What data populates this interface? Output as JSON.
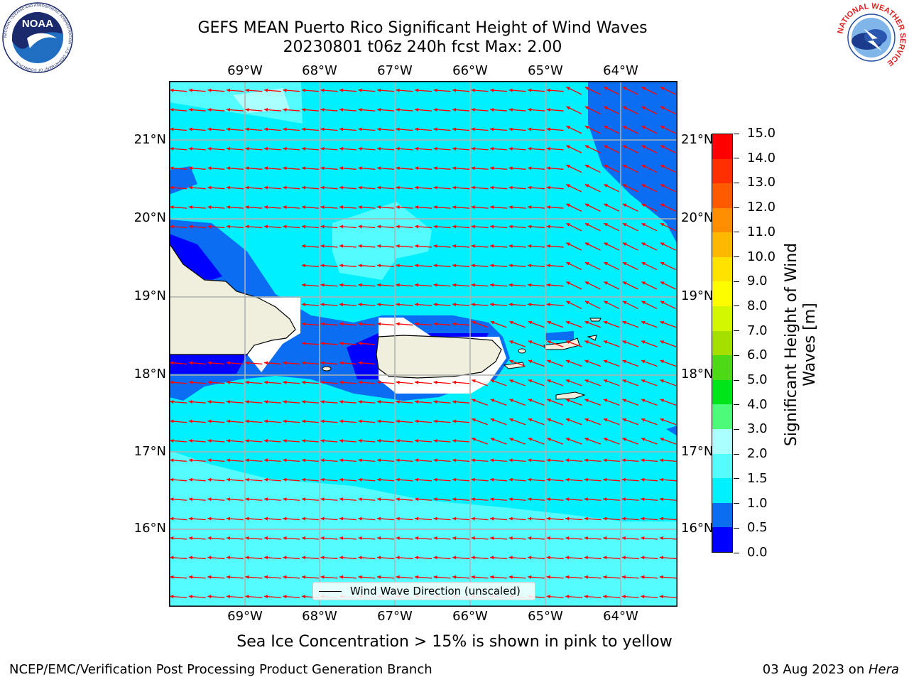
{
  "header": {
    "title_line1": "GEFS MEAN Puerto Rico Significant Height of Wind Waves",
    "title_line2": "20230801 t06z 240h fcst   Max: 2.00"
  },
  "logos": {
    "left": {
      "icon": "noaa-logo",
      "text": "NOAA",
      "ring_text": "NATIONAL OCEANIC AND ATMOSPHERIC ADMINISTRATION · U.S. DEPARTMENT OF COMMERCE"
    },
    "right": {
      "icon": "nws-logo",
      "ring_text": "NATIONAL WEATHER SERVICE"
    }
  },
  "map": {
    "lon_labels": [
      "69°W",
      "68°W",
      "67°W",
      "66°W",
      "65°W",
      "64°W"
    ],
    "lat_labels": [
      "21°N",
      "20°N",
      "19°N",
      "18°N",
      "17°N",
      "16°N"
    ],
    "extent": {
      "lon_min": -70.0,
      "lon_max": -63.25,
      "lat_min": 15.0,
      "lat_max": 21.75
    },
    "land_color": "#f0eedc",
    "arrow_color": "#ff0000",
    "wind_wave_direction": "westward"
  },
  "colorbar": {
    "title": "Significant Height of Wind Waves [m]",
    "ticks": [
      "0.0",
      "0.5",
      "1.0",
      "1.5",
      "2.0",
      "3.0",
      "4.0",
      "5.0",
      "6.0",
      "7.0",
      "8.0",
      "9.0",
      "10.0",
      "11.0",
      "12.0",
      "13.0",
      "14.0",
      "15.0"
    ],
    "colors": [
      "#0000ff",
      "#0b6ef2",
      "#00f0ff",
      "#55fcff",
      "#aaffff",
      "#4dfb7a",
      "#00e51a",
      "#4ed916",
      "#a4df00",
      "#d2f700",
      "#fdfd00",
      "#ffe200",
      "#ffb800",
      "#ff8d00",
      "#ff5a00",
      "#ff2f00",
      "#ff0000"
    ]
  },
  "legend": {
    "label": "Wind Wave Direction (unscaled)"
  },
  "note": "Sea Ice Concentration > 15% is shown in pink to yellow",
  "footer": {
    "left": "NCEP/EMC/Verification Post Processing Product Generation Branch",
    "right_prefix": "03 Aug 2023 on ",
    "right_host": "Hera"
  }
}
